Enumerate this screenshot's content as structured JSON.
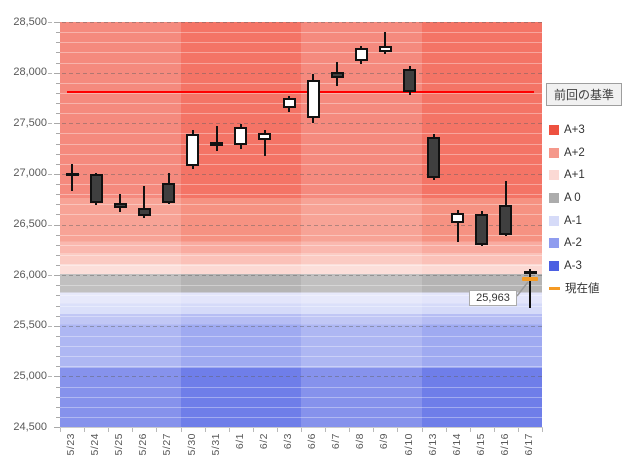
{
  "baseline_box": {
    "label": "前回の基準"
  },
  "annotation": {
    "text": "25,963"
  },
  "legend": {
    "items": [
      {
        "label": "A+3",
        "color": "#ee5140",
        "type": "square"
      },
      {
        "label": "A+2",
        "color": "#f5988b",
        "type": "square"
      },
      {
        "label": "A+1",
        "color": "#fbd9d4",
        "type": "square"
      },
      {
        "label": "A 0",
        "color": "#acacac",
        "type": "square"
      },
      {
        "label": "A-1",
        "color": "#d6dbf8",
        "type": "square"
      },
      {
        "label": "A-2",
        "color": "#8f9cef",
        "type": "square"
      },
      {
        "label": "A-3",
        "color": "#4c5fe2",
        "type": "square"
      },
      {
        "label": "現在値",
        "color": "#f59a23",
        "type": "dash"
      }
    ]
  },
  "axis": {
    "y_min": 24500,
    "y_max": 28500,
    "y_major_step": 500,
    "y_minor_step": 100,
    "y_tick_labels": [
      "28,500",
      "28,000",
      "27,500",
      "27,000",
      "26,500",
      "26,000",
      "25,500",
      "25,000",
      "24,500"
    ],
    "x_tick_labels": [
      "5/23",
      "5/24",
      "5/25",
      "5/26",
      "5/27",
      "5/30",
      "5/31",
      "6/1",
      "6/2",
      "6/3",
      "6/6",
      "6/7",
      "6/8",
      "6/9",
      "6/10",
      "6/13",
      "6/14",
      "6/15",
      "6/16",
      "6/17"
    ]
  },
  "chart_data": {
    "type": "candlestick",
    "title": "",
    "ylim": [
      24500,
      28500
    ],
    "x": [
      "5/23",
      "5/24",
      "5/25",
      "5/26",
      "5/27",
      "5/30",
      "5/31",
      "6/1",
      "6/2",
      "6/3",
      "6/6",
      "6/7",
      "6/8",
      "6/9",
      "6/10",
      "6/13",
      "6/14",
      "6/15",
      "6/16",
      "6/17"
    ],
    "ohlc": [
      [
        "5/23",
        27000,
        27100,
        26830,
        27000
      ],
      [
        "5/24",
        27000,
        27010,
        26690,
        26710
      ],
      [
        "5/25",
        26710,
        26800,
        26620,
        26660
      ],
      [
        "5/26",
        26660,
        26880,
        26560,
        26580
      ],
      [
        "5/27",
        26910,
        27010,
        26700,
        26710
      ],
      [
        "5/30",
        27080,
        27430,
        27050,
        27390
      ],
      [
        "5/31",
        27320,
        27470,
        27230,
        27280
      ],
      [
        "6/1",
        27280,
        27490,
        27250,
        27460
      ],
      [
        "6/2",
        27330,
        27430,
        27180,
        27400
      ],
      [
        "6/3",
        27650,
        27770,
        27610,
        27750
      ],
      [
        "6/6",
        27550,
        27990,
        27500,
        27930
      ],
      [
        "6/7",
        28010,
        28110,
        27870,
        27950
      ],
      [
        "6/8",
        28110,
        28260,
        28080,
        28240
      ],
      [
        "6/9",
        28200,
        28400,
        28180,
        28260
      ],
      [
        "6/10",
        28040,
        28070,
        27780,
        27810
      ],
      [
        "6/13",
        27360,
        27390,
        26940,
        26960
      ],
      [
        "6/14",
        26510,
        26640,
        26330,
        26610
      ],
      [
        "6/15",
        26600,
        26630,
        26290,
        26300
      ],
      [
        "6/16",
        26690,
        26930,
        26390,
        26400
      ],
      [
        "6/17",
        26020,
        26060,
        25680,
        26030
      ]
    ],
    "baseline": {
      "label": "前回の基準",
      "value": 27810,
      "color": "#fe0000"
    },
    "current": {
      "label": "現在値",
      "value": 25963,
      "color": "#f59a23"
    },
    "zones": [
      {
        "zone": "A+3",
        "hi": 28500,
        "lo": 26760,
        "color": "#f47466"
      },
      {
        "zone": "A+2",
        "hi": 26760,
        "lo": 26330,
        "color": "#f69282"
      },
      {
        "zone": "A+1",
        "hi": 26330,
        "lo": 26220,
        "color": "#f9aba0"
      },
      {
        "zone": "A+1",
        "hi": 26220,
        "lo": 26110,
        "color": "#fbc1b8"
      },
      {
        "zone": "A+1",
        "hi": 26110,
        "lo": 26010,
        "color": "#fcd9d3"
      },
      {
        "zone": "A 0",
        "hi": 26010,
        "lo": 25830,
        "color": "#b5b4b4"
      },
      {
        "zone": "A-1",
        "hi": 25830,
        "lo": 25720,
        "color": "#e3e5fb"
      },
      {
        "zone": "A-1",
        "hi": 25720,
        "lo": 25615,
        "color": "#d5daf9"
      },
      {
        "zone": "A-2",
        "hi": 25615,
        "lo": 25510,
        "color": "#b6bdf4"
      },
      {
        "zone": "A-2",
        "hi": 25510,
        "lo": 25085,
        "color": "#9faaf1"
      },
      {
        "zone": "A-3",
        "hi": 25085,
        "lo": 24500,
        "color": "#6f7ee9"
      }
    ],
    "week_groups": [
      {
        "dates": [
          "5/23",
          "5/24",
          "5/25",
          "5/26",
          "5/27"
        ],
        "shade": "light"
      },
      {
        "dates": [
          "5/30",
          "5/31",
          "6/1",
          "6/2",
          "6/3"
        ],
        "shade": "dark"
      },
      {
        "dates": [
          "6/6",
          "6/7",
          "6/8",
          "6/9",
          "6/10"
        ],
        "shade": "light"
      },
      {
        "dates": [
          "6/13",
          "6/14",
          "6/15",
          "6/16",
          "6/17"
        ],
        "shade": "dark"
      }
    ]
  }
}
